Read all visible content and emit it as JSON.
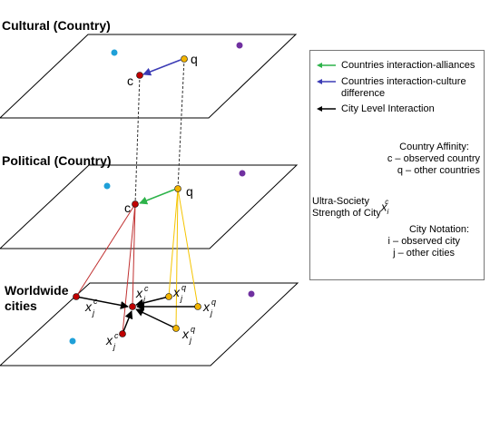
{
  "layers": {
    "cultural": "Cultural (Country)",
    "political": "Political (Country)",
    "worldwide_line1": "Worldwide",
    "worldwide_line2": "cities"
  },
  "nodes": {
    "c": "c",
    "q": "q",
    "x": "x",
    "sub_j": "j",
    "sup_c": "c",
    "sup_q": "q"
  },
  "legend": {
    "alliances": "Countries interaction-alliances",
    "culture_line1": "Countries interaction-culture",
    "culture_line2": "difference",
    "city": "City Level Interaction",
    "affinity_title": "Country Affinity:",
    "affinity_c": "c – observed country",
    "affinity_q": "q – other countries",
    "ultra_line1": "Ultra-Society",
    "ultra_line2": "Strength of City",
    "ultra_x": "x",
    "ultra_sub": "i",
    "ultra_sup": "c",
    "notation_title": "City Notation:",
    "notation_i": "i – observed city",
    "notation_j": "j – other cities"
  },
  "colors": {
    "green_arrow": "#2db34a",
    "blue_arrow": "#3b3bb5",
    "black_arrow": "#000000",
    "red_node": "#c00000",
    "orange_node": "#f2b400",
    "purple_node": "#7030a0",
    "cyan_node": "#1fa0d8",
    "red_line": "#c03030",
    "yellow_line": "#f5c400"
  }
}
